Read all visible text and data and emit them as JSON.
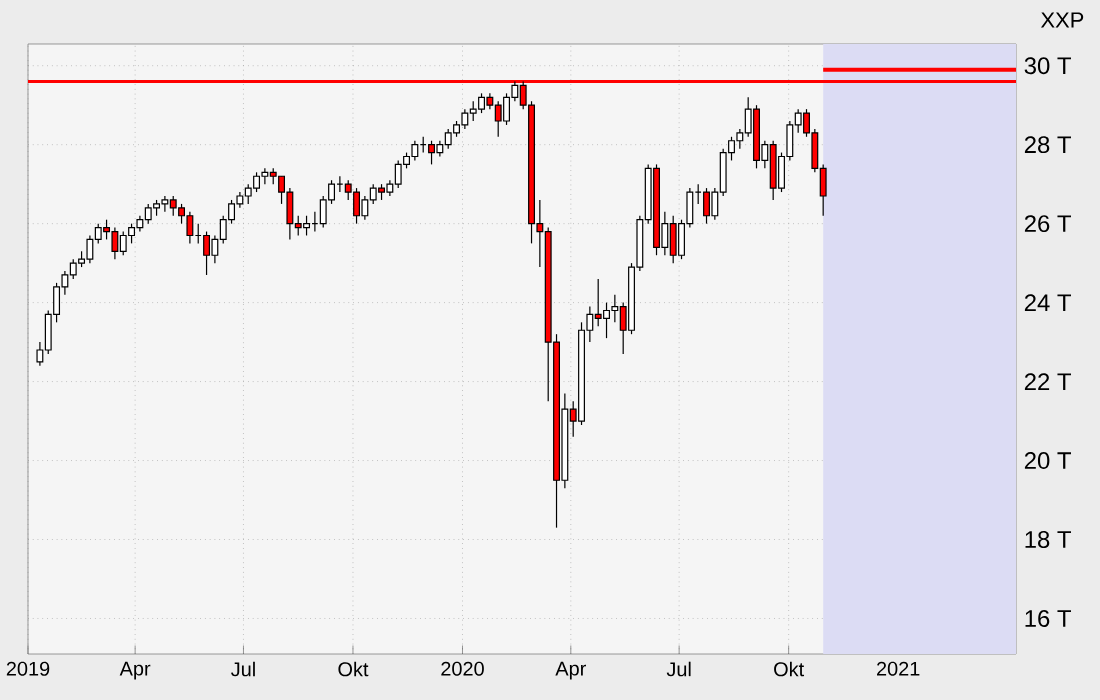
{
  "chart_data": {
    "type": "candlestick",
    "title": "XXP",
    "x": [
      "2019-01-11",
      "2019-01-18",
      "2019-01-25",
      "2019-02-01",
      "2019-02-08",
      "2019-02-15",
      "2019-02-22",
      "2019-03-01",
      "2019-03-08",
      "2019-03-15",
      "2019-03-22",
      "2019-03-29",
      "2019-04-05",
      "2019-04-12",
      "2019-04-19",
      "2019-04-26",
      "2019-05-03",
      "2019-05-10",
      "2019-05-17",
      "2019-05-24",
      "2019-05-31",
      "2019-06-07",
      "2019-06-14",
      "2019-06-21",
      "2019-06-28",
      "2019-07-05",
      "2019-07-12",
      "2019-07-19",
      "2019-07-26",
      "2019-08-02",
      "2019-08-09",
      "2019-08-16",
      "2019-08-23",
      "2019-08-30",
      "2019-09-06",
      "2019-09-13",
      "2019-09-20",
      "2019-09-27",
      "2019-10-04",
      "2019-10-11",
      "2019-10-18",
      "2019-10-25",
      "2019-11-01",
      "2019-11-08",
      "2019-11-15",
      "2019-11-22",
      "2019-11-29",
      "2019-12-06",
      "2019-12-13",
      "2019-12-20",
      "2019-12-27",
      "2020-01-03",
      "2020-01-10",
      "2020-01-17",
      "2020-01-24",
      "2020-01-31",
      "2020-02-07",
      "2020-02-14",
      "2020-02-21",
      "2020-02-28",
      "2020-03-06",
      "2020-03-13",
      "2020-03-20",
      "2020-03-27",
      "2020-04-03",
      "2020-04-10",
      "2020-04-17",
      "2020-04-24",
      "2020-05-01",
      "2020-05-08",
      "2020-05-15",
      "2020-05-22",
      "2020-05-29",
      "2020-06-05",
      "2020-06-12",
      "2020-06-19",
      "2020-06-26",
      "2020-07-03",
      "2020-07-10",
      "2020-07-17",
      "2020-07-24",
      "2020-07-31",
      "2020-08-07",
      "2020-08-14",
      "2020-08-21",
      "2020-08-28",
      "2020-09-04",
      "2020-09-11",
      "2020-09-18",
      "2020-09-25",
      "2020-10-02",
      "2020-10-09",
      "2020-10-16",
      "2020-10-23",
      "2020-10-30"
    ],
    "ohlc": [
      [
        22.5,
        23.0,
        22.4,
        22.8
      ],
      [
        22.8,
        23.8,
        22.7,
        23.7
      ],
      [
        23.7,
        24.5,
        23.5,
        24.4
      ],
      [
        24.4,
        24.8,
        24.2,
        24.7
      ],
      [
        24.7,
        25.1,
        24.6,
        25.0
      ],
      [
        25.0,
        25.3,
        24.9,
        25.1
      ],
      [
        25.1,
        25.7,
        25.0,
        25.6
      ],
      [
        25.6,
        26.0,
        25.5,
        25.9
      ],
      [
        25.9,
        26.1,
        25.6,
        25.8
      ],
      [
        25.8,
        25.9,
        25.1,
        25.3
      ],
      [
        25.3,
        25.8,
        25.2,
        25.7
      ],
      [
        25.7,
        26.0,
        25.5,
        25.9
      ],
      [
        25.9,
        26.2,
        25.8,
        26.1
      ],
      [
        26.1,
        26.5,
        26.0,
        26.4
      ],
      [
        26.4,
        26.6,
        26.2,
        26.5
      ],
      [
        26.5,
        26.7,
        26.3,
        26.6
      ],
      [
        26.6,
        26.7,
        26.2,
        26.4
      ],
      [
        26.4,
        26.5,
        26.0,
        26.2
      ],
      [
        26.2,
        26.3,
        25.5,
        25.7
      ],
      [
        25.7,
        26.0,
        25.5,
        25.7
      ],
      [
        25.7,
        25.8,
        24.7,
        25.2
      ],
      [
        25.2,
        25.7,
        25.0,
        25.6
      ],
      [
        25.6,
        26.2,
        25.5,
        26.1
      ],
      [
        26.1,
        26.6,
        26.0,
        26.5
      ],
      [
        26.5,
        26.8,
        26.4,
        26.7
      ],
      [
        26.7,
        27.0,
        26.5,
        26.9
      ],
      [
        26.9,
        27.3,
        26.8,
        27.2
      ],
      [
        27.2,
        27.4,
        27.0,
        27.3
      ],
      [
        27.3,
        27.4,
        27.0,
        27.2
      ],
      [
        27.2,
        27.2,
        26.5,
        26.8
      ],
      [
        26.8,
        26.9,
        25.6,
        26.0
      ],
      [
        26.0,
        26.2,
        25.7,
        25.9
      ],
      [
        25.9,
        26.2,
        25.7,
        26.0
      ],
      [
        26.0,
        26.3,
        25.8,
        26.0
      ],
      [
        26.0,
        26.7,
        25.9,
        26.6
      ],
      [
        26.6,
        27.1,
        26.5,
        27.0
      ],
      [
        27.0,
        27.2,
        26.8,
        27.0
      ],
      [
        27.0,
        27.1,
        26.6,
        26.8
      ],
      [
        26.8,
        26.9,
        26.0,
        26.2
      ],
      [
        26.2,
        26.7,
        26.1,
        26.6
      ],
      [
        26.6,
        27.0,
        26.5,
        26.9
      ],
      [
        26.9,
        27.0,
        26.6,
        26.8
      ],
      [
        26.8,
        27.1,
        26.7,
        27.0
      ],
      [
        27.0,
        27.6,
        26.9,
        27.5
      ],
      [
        27.5,
        27.8,
        27.4,
        27.7
      ],
      [
        27.7,
        28.1,
        27.6,
        28.0
      ],
      [
        28.0,
        28.2,
        27.8,
        28.0
      ],
      [
        28.0,
        28.1,
        27.5,
        27.8
      ],
      [
        27.8,
        28.1,
        27.7,
        28.0
      ],
      [
        28.0,
        28.4,
        27.9,
        28.3
      ],
      [
        28.3,
        28.6,
        28.2,
        28.5
      ],
      [
        28.5,
        28.9,
        28.4,
        28.8
      ],
      [
        28.8,
        29.1,
        28.6,
        28.9
      ],
      [
        28.9,
        29.3,
        28.8,
        29.2
      ],
      [
        29.2,
        29.3,
        28.9,
        29.0
      ],
      [
        29.0,
        29.1,
        28.2,
        28.6
      ],
      [
        28.6,
        29.3,
        28.5,
        29.2
      ],
      [
        29.2,
        29.6,
        29.1,
        29.5
      ],
      [
        29.5,
        29.6,
        28.9,
        29.0
      ],
      [
        29.0,
        29.1,
        25.5,
        26.0
      ],
      [
        26.0,
        26.6,
        24.9,
        25.8
      ],
      [
        25.8,
        25.9,
        21.5,
        23.0
      ],
      [
        23.0,
        23.2,
        18.3,
        19.5
      ],
      [
        19.5,
        21.7,
        19.3,
        21.3
      ],
      [
        21.3,
        21.5,
        20.6,
        21.0
      ],
      [
        21.0,
        23.5,
        20.9,
        23.3
      ],
      [
        23.3,
        23.9,
        23.0,
        23.7
      ],
      [
        23.7,
        24.6,
        23.4,
        23.6
      ],
      [
        23.6,
        24.0,
        23.1,
        23.8
      ],
      [
        23.8,
        24.2,
        23.5,
        23.9
      ],
      [
        23.9,
        24.0,
        22.7,
        23.3
      ],
      [
        23.3,
        25.0,
        23.2,
        24.9
      ],
      [
        24.9,
        26.2,
        24.8,
        26.1
      ],
      [
        26.1,
        27.5,
        26.0,
        27.4
      ],
      [
        27.4,
        27.5,
        25.2,
        25.4
      ],
      [
        25.4,
        26.3,
        25.2,
        26.0
      ],
      [
        26.0,
        26.2,
        25.0,
        25.2
      ],
      [
        25.2,
        26.1,
        25.1,
        26.0
      ],
      [
        26.0,
        26.9,
        25.9,
        26.8
      ],
      [
        26.8,
        27.0,
        26.5,
        26.8
      ],
      [
        26.8,
        26.9,
        26.0,
        26.2
      ],
      [
        26.2,
        26.9,
        26.1,
        26.8
      ],
      [
        26.8,
        27.9,
        26.7,
        27.8
      ],
      [
        27.8,
        28.2,
        27.6,
        28.1
      ],
      [
        28.1,
        28.4,
        27.9,
        28.3
      ],
      [
        28.3,
        29.2,
        28.2,
        28.9
      ],
      [
        28.9,
        29.0,
        27.4,
        27.6
      ],
      [
        27.6,
        28.1,
        27.4,
        28.0
      ],
      [
        28.0,
        28.1,
        26.6,
        26.9
      ],
      [
        26.9,
        27.8,
        26.8,
        27.7
      ],
      [
        27.7,
        28.6,
        27.6,
        28.5
      ],
      [
        28.5,
        28.9,
        28.3,
        28.8
      ],
      [
        28.8,
        28.9,
        28.2,
        28.3
      ],
      [
        28.3,
        28.4,
        27.3,
        27.4
      ],
      [
        27.4,
        27.5,
        26.2,
        26.7
      ]
    ],
    "series": [
      {
        "type": "line",
        "color": "#ff0000",
        "x": [
          "2020-10-30",
          "2021-04-10"
        ],
        "values": [
          29.9,
          29.9
        ]
      }
    ],
    "ref_lines": [
      {
        "axis": "y",
        "value": 29.6,
        "color": "#ff0000"
      }
    ],
    "bands": [
      {
        "axis": "x",
        "from": "2020-10-30",
        "to": "2021-04-10",
        "color": "#dcdcf4"
      }
    ],
    "xlim": [
      "2019-01-01",
      "2021-04-10"
    ],
    "xticks": [
      {
        "value": "2019-01-01",
        "label": "2019"
      },
      {
        "value": "2019-04-01",
        "label": "Apr"
      },
      {
        "value": "2019-07-01",
        "label": "Jul"
      },
      {
        "value": "2019-10-01",
        "label": "Okt"
      },
      {
        "value": "2020-01-01",
        "label": "2020"
      },
      {
        "value": "2020-04-01",
        "label": "Apr"
      },
      {
        "value": "2020-07-01",
        "label": "Jul"
      },
      {
        "value": "2020-10-01",
        "label": "Okt"
      },
      {
        "value": "2021-01-01",
        "label": "2021"
      },
      {
        "value": "2021-04-01",
        "label": null
      }
    ],
    "ylim": [
      15.1,
      30.55
    ],
    "yticks": [
      {
        "value": 16,
        "label": "16 T"
      },
      {
        "value": 18,
        "label": "18 T"
      },
      {
        "value": 20,
        "label": "20 T"
      },
      {
        "value": 22,
        "label": "22 T"
      },
      {
        "value": 24,
        "label": "24 T"
      },
      {
        "value": 26,
        "label": "26 T"
      },
      {
        "value": 28,
        "label": "28 T"
      },
      {
        "value": 30,
        "label": "30 T"
      }
    ],
    "grid": true
  }
}
